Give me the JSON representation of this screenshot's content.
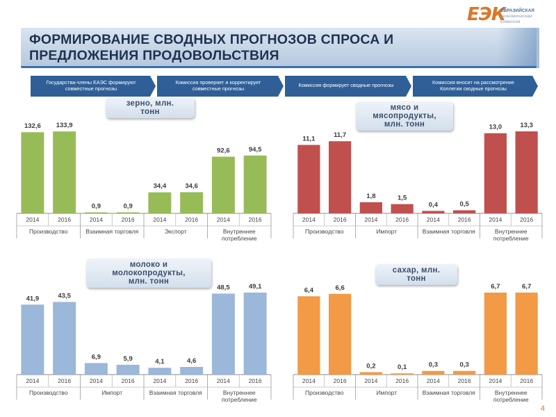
{
  "logo": {
    "mark": "ЕЭК",
    "line1": "ЕВРАЗИЙСКАЯ",
    "line2": "экономическая",
    "line3": "комиссия"
  },
  "title": {
    "line1": "ФОРМИРОВАНИЕ СВОДНЫХ ПРОГНОЗОВ СПРОСА И",
    "line2": "ПРЕДЛОЖЕНИЯ ПРОДОВОЛЬСТВИЯ"
  },
  "steps": [
    {
      "line1": "Государства-члены ЕАЭС формируют",
      "line2": "совместные прогнозы"
    },
    {
      "line1": "Комиссия проверяет и корректирует",
      "line2": "совместные прогнозы"
    },
    {
      "line1": "Комиссия формирует сводные прогнозы",
      "line2": ""
    },
    {
      "line1": "Комиссия вносит на рассмотрение",
      "line2": "Коллегии сводные прогнозы"
    }
  ],
  "page_number": "4",
  "colors": {
    "grain": "#97bc57",
    "meat": "#c0504d",
    "milk": "#9bb7d9",
    "sugar": "#f29a45",
    "navy": "#2f5f96"
  },
  "chart_data": [
    {
      "type": "bar",
      "title": "зерно, млн. тонн",
      "title_lines": [
        "зерно, млн.",
        "тонн"
      ],
      "groups": [
        "Производство",
        "Взаимная торговля",
        "Экспорт",
        "Внутреннее потребление"
      ],
      "group_lines": [
        [
          "Производство"
        ],
        [
          "Взаимная торговля"
        ],
        [
          "Экспорт"
        ],
        [
          "Внутреннее",
          "потребление"
        ]
      ],
      "categories": [
        "2014",
        "2016",
        "2014",
        "2016",
        "2014",
        "2016",
        "2014",
        "2016"
      ],
      "values": [
        132.6,
        133.9,
        0.9,
        0.9,
        34.4,
        34.6,
        92.6,
        94.5
      ],
      "value_labels": [
        "132,6",
        "133,9",
        "0,9",
        "0,9",
        "34,4",
        "34,6",
        "92,6",
        "94,5"
      ],
      "ylim": [
        0,
        134
      ]
    },
    {
      "type": "bar",
      "title": "мясо и мясопродукты, млн. тонн",
      "title_lines": [
        "мясо и",
        "мясопродукты,",
        "млн. тонн"
      ],
      "groups": [
        "Производство",
        "Импорт",
        "Взаимная торговля",
        "Внутреннее потребление"
      ],
      "group_lines": [
        [
          "Производство"
        ],
        [
          "Импорт"
        ],
        [
          "Взаимная торговля"
        ],
        [
          "Внутреннее",
          "потребление"
        ]
      ],
      "categories": [
        "2014",
        "2016",
        "2014",
        "2016",
        "2014",
        "2016",
        "2014",
        "2016"
      ],
      "values": [
        11.1,
        11.7,
        1.8,
        1.5,
        0.4,
        0.5,
        13.0,
        13.3
      ],
      "value_labels": [
        "11,1",
        "11,7",
        "1,8",
        "1,5",
        "0,4",
        "0,5",
        "13,0",
        "13,3"
      ],
      "ylim": [
        0,
        13.3
      ]
    },
    {
      "type": "bar",
      "title": "молоко и молокопродукты, млн. тонн",
      "title_lines": [
        "молоко и",
        "молокопродукты,",
        "млн. тонн"
      ],
      "groups": [
        "Производство",
        "Импорт",
        "Взаимная торговля",
        "Внутреннее потребление"
      ],
      "group_lines": [
        [
          "Производство"
        ],
        [
          "Импорт"
        ],
        [
          "Взаимная торговля"
        ],
        [
          "Внутреннее",
          "потребление"
        ]
      ],
      "categories": [
        "2014",
        "2016",
        "2014",
        "2016",
        "2014",
        "2016",
        "2014",
        "2016"
      ],
      "values": [
        41.9,
        43.5,
        6.9,
        5.9,
        4.1,
        4.6,
        48.5,
        49.1
      ],
      "value_labels": [
        "41,9",
        "43,5",
        "6,9",
        "5,9",
        "4,1",
        "4,6",
        "48,5",
        "49,1"
      ],
      "ylim": [
        0,
        49.1
      ]
    },
    {
      "type": "bar",
      "title": "сахар, млн. тонн",
      "title_lines": [
        "сахар, млн.",
        "тонн"
      ],
      "groups": [
        "Производство",
        "Импорт",
        "Взаимная торговля",
        "Внутреннее потребление"
      ],
      "group_lines": [
        [
          "Производство"
        ],
        [
          "Импорт"
        ],
        [
          "Взаимная торговля"
        ],
        [
          "Внутреннее",
          "потребление"
        ]
      ],
      "categories": [
        "2014",
        "2016",
        "2014",
        "2016",
        "2014",
        "2016",
        "2014",
        "2016"
      ],
      "values": [
        6.4,
        6.6,
        0.2,
        0.1,
        0.3,
        0.3,
        6.7,
        6.7
      ],
      "value_labels": [
        "6,4",
        "6,6",
        "0,2",
        "0,1",
        "0,3",
        "0,3",
        "6,7",
        "6,7"
      ],
      "ylim": [
        0,
        6.7
      ]
    }
  ]
}
